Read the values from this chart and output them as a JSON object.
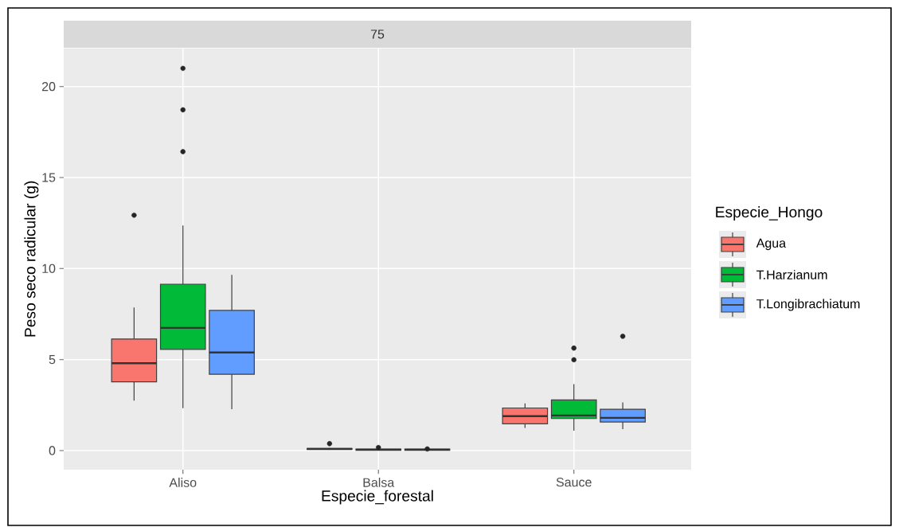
{
  "chart_data": {
    "type": "box",
    "title": "75",
    "xlabel": "Especie_forestal",
    "ylabel": "Peso seco radicular (g)",
    "legend_title": "Especie_Hongo",
    "categories": [
      "Aliso",
      "Balsa",
      "Sauce"
    ],
    "series": [
      {
        "name": "Agua",
        "color": "#f8766d",
        "boxes": [
          {
            "low": 2.74,
            "q1": 3.78,
            "median": 4.8,
            "q3": 6.13,
            "high": 7.86,
            "outliers": [
              12.93
            ]
          },
          {
            "low": 0.05,
            "q1": 0.07,
            "median": 0.09,
            "q3": 0.11,
            "high": 0.14,
            "outliers": [
              0.38
            ]
          },
          {
            "low": 1.25,
            "q1": 1.47,
            "median": 1.89,
            "q3": 2.34,
            "high": 2.59
          }
        ]
      },
      {
        "name": "T.Harzianum",
        "color": "#00ba38",
        "boxes": [
          {
            "low": 2.33,
            "q1": 5.56,
            "median": 6.74,
            "q3": 9.14,
            "high": 12.37,
            "outliers": [
              21.0,
              18.72,
              16.42
            ]
          },
          {
            "low": 0.0,
            "q1": 0.02,
            "median": 0.05,
            "q3": 0.08,
            "high": 0.1,
            "outliers": [
              0.17
            ]
          },
          {
            "low": 1.09,
            "q1": 1.76,
            "median": 1.93,
            "q3": 2.78,
            "high": 3.65,
            "outliers": [
              5.63,
              4.99
            ]
          }
        ]
      },
      {
        "name": "T.Longibrachiatum",
        "color": "#619cff",
        "boxes": [
          {
            "low": 2.27,
            "q1": 4.19,
            "median": 5.39,
            "q3": 7.7,
            "high": 9.65
          },
          {
            "low": 0.0,
            "q1": 0.02,
            "median": 0.05,
            "q3": 0.08,
            "high": 0.1,
            "outliers": [
              0.09
            ]
          },
          {
            "low": 1.18,
            "q1": 1.57,
            "median": 1.8,
            "q3": 2.27,
            "high": 2.65,
            "outliers": [
              6.28
            ]
          }
        ]
      }
    ],
    "ylim": [
      -1.05,
      22.1
    ],
    "yticks": [
      0,
      5,
      10,
      15,
      20
    ],
    "grid": true,
    "legend": "right"
  }
}
